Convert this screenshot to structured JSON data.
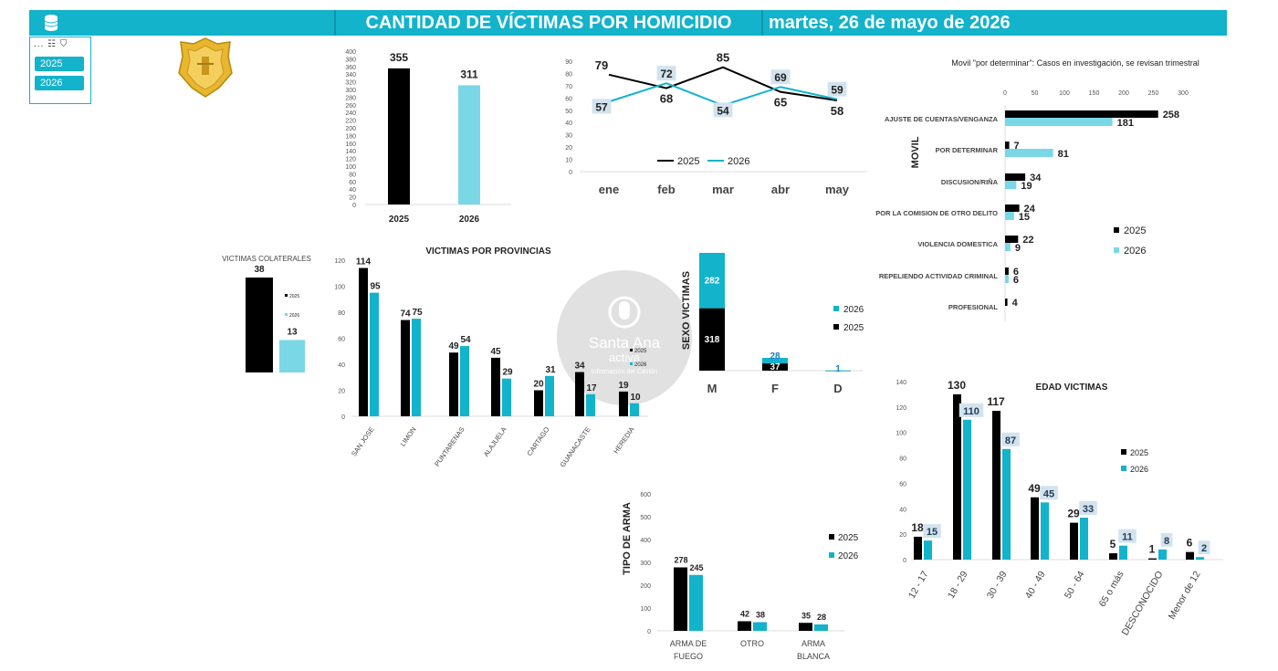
{
  "header": {
    "title": "CANTIDAD DE VÍCTIMAS POR HOMICIDIO",
    "date": "martes, 26 de mayo de 2026"
  },
  "slicer": {
    "tools": "... ☷ ⛉",
    "items": [
      "2025",
      "2026"
    ]
  },
  "watermark": {
    "name": "Santa Ana",
    "sub": "activa",
    "caption": "Información del Cantón"
  },
  "colors": {
    "y2025": "#000000",
    "y2026_total": "#7ad7e6",
    "y2026": "#12b3cb",
    "header": "#12b3cb"
  },
  "chart_data": [
    {
      "id": "totals",
      "type": "bar",
      "categories": [
        "2025",
        "2026"
      ],
      "values": [
        355,
        311
      ],
      "ylim": [
        0,
        400
      ],
      "yticks": [
        0,
        20,
        40,
        60,
        80,
        100,
        120,
        140,
        160,
        180,
        200,
        220,
        240,
        260,
        280,
        300,
        320,
        340,
        360,
        380,
        400
      ]
    },
    {
      "id": "monthly",
      "type": "line",
      "categories": [
        "ene",
        "feb",
        "mar",
        "abr",
        "may"
      ],
      "series": [
        {
          "name": "2025",
          "values": [
            79,
            68,
            85,
            65,
            58
          ]
        },
        {
          "name": "2026",
          "values": [
            57,
            72,
            54,
            69,
            59
          ]
        }
      ],
      "ylim": [
        0,
        90
      ],
      "yticks": [
        0,
        10,
        20,
        30,
        40,
        50,
        60,
        70,
        80,
        90
      ]
    },
    {
      "id": "movil",
      "type": "bar",
      "title": "Movil \"por determinar\": Casos en investigación, se revisan trimestral",
      "ylabel": "MOVIL",
      "categories": [
        "AJUSTE DE CUENTAS/VENGANZA",
        "POR DETERMINAR",
        "DISCUSION/RIÑA",
        "POR LA COMISION DE OTRO DELITO",
        "VIOLENCIA DOMESTICA",
        "REPELIENDO ACTIVIDAD CRIMINAL",
        "PROFESIONAL"
      ],
      "series": [
        {
          "name": "2025",
          "values": [
            258,
            7,
            34,
            24,
            22,
            6,
            4
          ]
        },
        {
          "name": "2026",
          "values": [
            181,
            81,
            19,
            15,
            9,
            6,
            0
          ]
        }
      ],
      "xlim": [
        0,
        300
      ],
      "xticks": [
        0,
        50,
        100,
        150,
        200,
        250,
        300
      ]
    },
    {
      "id": "colaterales",
      "type": "bar",
      "title": "VICTIMAS COLATERALES",
      "categories": [
        "2025",
        "2026"
      ],
      "values": [
        38,
        13
      ]
    },
    {
      "id": "provincias",
      "type": "bar",
      "title": "VICTIMAS POR PROVINCIAS",
      "categories": [
        "SAN JOSE",
        "LIMON",
        "PUNTARENAS",
        "ALAJUELA",
        "CARTAGO",
        "GUANACASTE",
        "HEREDIA"
      ],
      "series": [
        {
          "name": "2025",
          "values": [
            114,
            74,
            49,
            45,
            20,
            34,
            19
          ]
        },
        {
          "name": "2026",
          "values": [
            95,
            75,
            54,
            29,
            31,
            17,
            10
          ]
        }
      ],
      "ylim": [
        0,
        120
      ],
      "yticks": [
        0,
        20,
        40,
        60,
        80,
        100,
        120
      ]
    },
    {
      "id": "sexo",
      "type": "bar",
      "ylabel": "SEXO VICTIMAS",
      "categories": [
        "M",
        "F",
        "D"
      ],
      "series": [
        {
          "name": "2025",
          "values": [
            318,
            37,
            0
          ]
        },
        {
          "name": "2026",
          "values": [
            282,
            28,
            1
          ]
        }
      ]
    },
    {
      "id": "edad",
      "type": "bar",
      "title": "EDAD VICTIMAS",
      "categories": [
        "12 - 17",
        "18 - 29",
        "30 - 39",
        "40 - 49",
        "50 - 64",
        "65 o más",
        "DESCONOCIDO",
        "Menor de 12"
      ],
      "series": [
        {
          "name": "2025",
          "values": [
            18,
            130,
            117,
            49,
            29,
            5,
            1,
            6
          ]
        },
        {
          "name": "2026",
          "values": [
            15,
            110,
            87,
            45,
            33,
            11,
            8,
            2
          ]
        }
      ],
      "ylim": [
        0,
        140
      ],
      "yticks": [
        0,
        20,
        40,
        60,
        80,
        100,
        120,
        140
      ]
    },
    {
      "id": "arma",
      "type": "bar",
      "ylabel": "TIPO DE ARMA",
      "categories": [
        "ARMA DE FUEGO",
        "OTRO",
        "ARMA BLANCA"
      ],
      "series": [
        {
          "name": "2025",
          "values": [
            278,
            42,
            35
          ]
        },
        {
          "name": "2026",
          "values": [
            245,
            38,
            28
          ]
        }
      ],
      "ylim": [
        0,
        600
      ],
      "yticks": [
        0,
        100,
        200,
        300,
        400,
        500,
        600
      ]
    }
  ]
}
